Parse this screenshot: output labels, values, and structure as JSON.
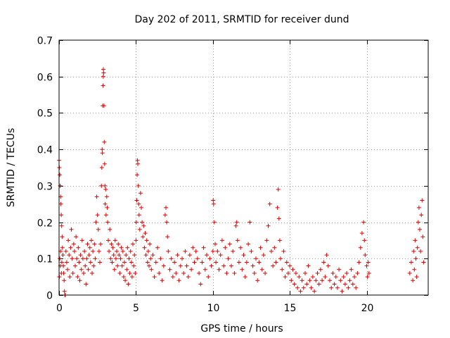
{
  "chart_data": {
    "type": "scatter",
    "title": "Day 202 of 2011, SRMTID for receiver dund",
    "xlabel": "GPS time / hours",
    "ylabel": "SRMTID / TECUs",
    "xlim": [
      0,
      24
    ],
    "ylim": [
      0,
      0.7
    ],
    "xticks": [
      0,
      5,
      10,
      15,
      20
    ],
    "xtick_labels": [
      "0",
      "5",
      "10",
      "15",
      "20"
    ],
    "yticks": [
      0,
      0.1,
      0.2,
      0.3,
      0.4,
      0.5,
      0.6,
      0.7
    ],
    "ytick_labels": [
      "0",
      "0.1",
      "0.2",
      "0.3",
      "0.4",
      "0.5",
      "0.6",
      "0.7"
    ],
    "grid": true,
    "marker": "+",
    "series": [
      {
        "name": "SRMTID",
        "color": "#e00000",
        "points": [
          [
            0.0,
            0.37
          ],
          [
            0.02,
            0.35
          ],
          [
            0.05,
            0.33
          ],
          [
            0.07,
            0.3
          ],
          [
            0.1,
            0.27
          ],
          [
            0.12,
            0.25
          ],
          [
            0.14,
            0.22
          ],
          [
            0.17,
            0.19
          ],
          [
            0.2,
            0.16
          ],
          [
            0.22,
            0.13
          ],
          [
            0.25,
            0.11
          ],
          [
            0.28,
            0.08
          ],
          [
            0.3,
            0.06
          ],
          [
            0.33,
            0.04
          ],
          [
            0.35,
            0.01
          ],
          [
            0.38,
            0.0
          ],
          [
            0.4,
            0.0
          ],
          [
            0.05,
            0.1
          ],
          [
            0.08,
            0.08
          ],
          [
            0.15,
            0.06
          ],
          [
            0.18,
            0.09
          ],
          [
            0.1,
            0.12
          ],
          [
            0.02,
            0.05
          ],
          [
            0.45,
            0.12
          ],
          [
            0.5,
            0.09
          ],
          [
            0.55,
            0.07
          ],
          [
            0.6,
            0.15
          ],
          [
            0.65,
            0.11
          ],
          [
            0.7,
            0.05
          ],
          [
            0.75,
            0.13
          ],
          [
            0.8,
            0.18
          ],
          [
            0.85,
            0.1
          ],
          [
            0.9,
            0.06
          ],
          [
            0.95,
            0.14
          ],
          [
            1.0,
            0.12
          ],
          [
            1.05,
            0.08
          ],
          [
            1.1,
            0.16
          ],
          [
            1.15,
            0.1
          ],
          [
            1.2,
            0.05
          ],
          [
            1.25,
            0.13
          ],
          [
            1.3,
            0.09
          ],
          [
            1.35,
            0.04
          ],
          [
            1.4,
            0.11
          ],
          [
            1.45,
            0.07
          ],
          [
            1.5,
            0.15
          ],
          [
            1.55,
            0.1
          ],
          [
            1.6,
            0.06
          ],
          [
            1.65,
            0.12
          ],
          [
            1.7,
            0.08
          ],
          [
            1.75,
            0.03
          ],
          [
            1.8,
            0.1
          ],
          [
            1.85,
            0.14
          ],
          [
            1.9,
            0.07
          ],
          [
            1.95,
            0.11
          ],
          [
            2.0,
            0.13
          ],
          [
            2.05,
            0.09
          ],
          [
            2.1,
            0.15
          ],
          [
            2.15,
            0.06
          ],
          [
            2.2,
            0.12
          ],
          [
            2.25,
            0.08
          ],
          [
            2.3,
            0.14
          ],
          [
            2.35,
            0.1
          ],
          [
            2.4,
            0.2
          ],
          [
            2.45,
            0.27
          ],
          [
            2.5,
            0.22
          ],
          [
            2.55,
            0.18
          ],
          [
            2.6,
            0.12
          ],
          [
            2.65,
            0.09
          ],
          [
            2.7,
            0.14
          ],
          [
            2.75,
            0.3
          ],
          [
            2.78,
            0.35
          ],
          [
            2.8,
            0.4
          ],
          [
            2.82,
            0.39
          ],
          [
            2.84,
            0.52
          ],
          [
            2.86,
            0.575
          ],
          [
            2.87,
            0.6
          ],
          [
            2.88,
            0.62
          ],
          [
            2.9,
            0.61
          ],
          [
            2.92,
            0.52
          ],
          [
            2.94,
            0.42
          ],
          [
            2.96,
            0.36
          ],
          [
            2.98,
            0.3
          ],
          [
            3.0,
            0.25
          ],
          [
            3.03,
            0.29
          ],
          [
            3.06,
            0.22
          ],
          [
            3.1,
            0.27
          ],
          [
            3.13,
            0.24
          ],
          [
            3.16,
            0.2
          ],
          [
            3.2,
            0.15
          ],
          [
            3.25,
            0.12
          ],
          [
            3.3,
            0.18
          ],
          [
            3.35,
            0.1
          ],
          [
            3.4,
            0.14
          ],
          [
            3.45,
            0.09
          ],
          [
            3.5,
            0.13
          ],
          [
            3.55,
            0.11
          ],
          [
            3.6,
            0.07
          ],
          [
            3.65,
            0.15
          ],
          [
            3.7,
            0.1
          ],
          [
            3.75,
            0.12
          ],
          [
            3.8,
            0.08
          ],
          [
            3.85,
            0.14
          ],
          [
            3.9,
            0.11
          ],
          [
            3.95,
            0.06
          ],
          [
            4.0,
            0.1
          ],
          [
            4.05,
            0.13
          ],
          [
            4.1,
            0.08
          ],
          [
            4.15,
            0.12
          ],
          [
            4.2,
            0.05
          ],
          [
            4.25,
            0.09
          ],
          [
            4.3,
            0.04
          ],
          [
            4.35,
            0.11
          ],
          [
            4.4,
            0.07
          ],
          [
            4.45,
            0.13
          ],
          [
            4.5,
            0.03
          ],
          [
            4.55,
            0.1
          ],
          [
            4.6,
            0.06
          ],
          [
            4.65,
            0.12
          ],
          [
            4.7,
            0.09
          ],
          [
            4.75,
            0.05
          ],
          [
            4.8,
            0.14
          ],
          [
            4.85,
            0.08
          ],
          [
            4.9,
            0.11
          ],
          [
            4.95,
            0.06
          ],
          [
            5.0,
            0.15
          ],
          [
            5.02,
            0.2
          ],
          [
            5.05,
            0.26
          ],
          [
            5.08,
            0.33
          ],
          [
            5.1,
            0.37
          ],
          [
            5.12,
            0.36
          ],
          [
            5.15,
            0.3
          ],
          [
            5.18,
            0.25
          ],
          [
            5.2,
            0.22
          ],
          [
            5.25,
            0.18
          ],
          [
            5.3,
            0.28
          ],
          [
            5.35,
            0.24
          ],
          [
            5.4,
            0.2
          ],
          [
            5.45,
            0.16
          ],
          [
            5.5,
            0.19
          ],
          [
            5.55,
            0.13
          ],
          [
            5.6,
            0.17
          ],
          [
            5.65,
            0.11
          ],
          [
            5.7,
            0.15
          ],
          [
            5.75,
            0.09
          ],
          [
            5.8,
            0.12
          ],
          [
            5.85,
            0.08
          ],
          [
            5.9,
            0.14
          ],
          [
            5.95,
            0.1
          ],
          [
            6.0,
            0.07
          ],
          [
            6.1,
            0.11
          ],
          [
            6.2,
            0.05
          ],
          [
            6.3,
            0.09
          ],
          [
            6.4,
            0.13
          ],
          [
            6.5,
            0.06
          ],
          [
            6.6,
            0.1
          ],
          [
            6.7,
            0.04
          ],
          [
            6.8,
            0.08
          ],
          [
            6.9,
            0.22
          ],
          [
            6.95,
            0.24
          ],
          [
            7.0,
            0.2
          ],
          [
            7.05,
            0.16
          ],
          [
            7.1,
            0.12
          ],
          [
            7.2,
            0.07
          ],
          [
            7.3,
            0.1
          ],
          [
            7.4,
            0.05
          ],
          [
            7.5,
            0.09
          ],
          [
            7.6,
            0.06
          ],
          [
            7.7,
            0.11
          ],
          [
            7.8,
            0.04
          ],
          [
            7.9,
            0.08
          ],
          [
            8.0,
            0.1
          ],
          [
            8.1,
            0.06
          ],
          [
            8.2,
            0.12
          ],
          [
            8.3,
            0.08
          ],
          [
            8.4,
            0.05
          ],
          [
            8.5,
            0.11
          ],
          [
            8.6,
            0.07
          ],
          [
            8.7,
            0.13
          ],
          [
            8.8,
            0.09
          ],
          [
            8.9,
            0.12
          ],
          [
            9.0,
            0.1
          ],
          [
            9.1,
            0.06
          ],
          [
            9.2,
            0.03
          ],
          [
            9.3,
            0.09
          ],
          [
            9.4,
            0.13
          ],
          [
            9.5,
            0.07
          ],
          [
            9.6,
            0.11
          ],
          [
            9.7,
            0.05
          ],
          [
            9.8,
            0.1
          ],
          [
            9.9,
            0.08
          ],
          [
            10.0,
            0.12
          ],
          [
            10.02,
            0.26
          ],
          [
            10.05,
            0.25
          ],
          [
            10.1,
            0.2
          ],
          [
            10.15,
            0.14
          ],
          [
            10.2,
            0.09
          ],
          [
            10.3,
            0.12
          ],
          [
            10.4,
            0.07
          ],
          [
            10.5,
            0.11
          ],
          [
            10.6,
            0.15
          ],
          [
            10.7,
            0.08
          ],
          [
            10.8,
            0.13
          ],
          [
            10.9,
            0.06
          ],
          [
            11.0,
            0.1
          ],
          [
            11.1,
            0.14
          ],
          [
            11.2,
            0.08
          ],
          [
            11.3,
            0.12
          ],
          [
            11.4,
            0.06
          ],
          [
            11.5,
            0.19
          ],
          [
            11.55,
            0.2
          ],
          [
            11.6,
            0.15
          ],
          [
            11.7,
            0.09
          ],
          [
            11.8,
            0.13
          ],
          [
            11.9,
            0.07
          ],
          [
            12.0,
            0.11
          ],
          [
            12.1,
            0.05
          ],
          [
            12.2,
            0.09
          ],
          [
            12.3,
            0.14
          ],
          [
            12.4,
            0.2
          ],
          [
            12.5,
            0.12
          ],
          [
            12.6,
            0.08
          ],
          [
            12.7,
            0.06
          ],
          [
            12.8,
            0.1
          ],
          [
            12.9,
            0.04
          ],
          [
            13.0,
            0.09
          ],
          [
            13.1,
            0.13
          ],
          [
            13.2,
            0.07
          ],
          [
            13.3,
            0.11
          ],
          [
            13.4,
            0.06
          ],
          [
            13.5,
            0.15
          ],
          [
            13.6,
            0.19
          ],
          [
            13.7,
            0.25
          ],
          [
            13.8,
            0.12
          ],
          [
            13.9,
            0.08
          ],
          [
            14.0,
            0.13
          ],
          [
            14.1,
            0.09
          ],
          [
            14.2,
            0.24
          ],
          [
            14.25,
            0.29
          ],
          [
            14.3,
            0.21
          ],
          [
            14.35,
            0.15
          ],
          [
            14.4,
            0.1
          ],
          [
            14.5,
            0.07
          ],
          [
            14.6,
            0.12
          ],
          [
            14.7,
            0.05
          ],
          [
            14.8,
            0.09
          ],
          [
            14.9,
            0.06
          ],
          [
            15.0,
            0.08
          ],
          [
            15.1,
            0.04
          ],
          [
            15.2,
            0.07
          ],
          [
            15.3,
            0.03
          ],
          [
            15.4,
            0.06
          ],
          [
            15.5,
            0.02
          ],
          [
            15.6,
            0.05
          ],
          [
            15.7,
            0.01
          ],
          [
            15.8,
            0.04
          ],
          [
            15.9,
            0.02
          ],
          [
            16.0,
            0.06
          ],
          [
            16.1,
            0.03
          ],
          [
            16.2,
            0.08
          ],
          [
            16.3,
            0.04
          ],
          [
            16.4,
            0.02
          ],
          [
            16.5,
            0.05
          ],
          [
            16.6,
            0.01
          ],
          [
            16.7,
            0.04
          ],
          [
            16.8,
            0.06
          ],
          [
            16.9,
            0.03
          ],
          [
            17.0,
            0.07
          ],
          [
            17.1,
            0.04
          ],
          [
            17.2,
            0.09
          ],
          [
            17.3,
            0.05
          ],
          [
            17.4,
            0.11
          ],
          [
            17.5,
            0.08
          ],
          [
            17.6,
            0.04
          ],
          [
            17.7,
            0.02
          ],
          [
            17.8,
            0.06
          ],
          [
            17.9,
            0.03
          ],
          [
            18.0,
            0.05
          ],
          [
            18.1,
            0.02
          ],
          [
            18.2,
            0.07
          ],
          [
            18.3,
            0.04
          ],
          [
            18.4,
            0.01
          ],
          [
            18.5,
            0.05
          ],
          [
            18.6,
            0.03
          ],
          [
            18.7,
            0.06
          ],
          [
            18.8,
            0.02
          ],
          [
            18.9,
            0.04
          ],
          [
            19.0,
            0.07
          ],
          [
            19.1,
            0.03
          ],
          [
            19.2,
            0.05
          ],
          [
            19.3,
            0.02
          ],
          [
            19.4,
            0.06
          ],
          [
            19.5,
            0.09
          ],
          [
            19.6,
            0.13
          ],
          [
            19.7,
            0.17
          ],
          [
            19.8,
            0.2
          ],
          [
            19.85,
            0.15
          ],
          [
            19.9,
            0.11
          ],
          [
            20.0,
            0.08
          ],
          [
            20.05,
            0.05
          ],
          [
            20.1,
            0.09
          ],
          [
            20.15,
            0.06
          ],
          [
            22.8,
            0.06
          ],
          [
            22.9,
            0.09
          ],
          [
            23.0,
            0.04
          ],
          [
            23.05,
            0.12
          ],
          [
            23.1,
            0.07
          ],
          [
            23.15,
            0.15
          ],
          [
            23.2,
            0.1
          ],
          [
            23.25,
            0.05
          ],
          [
            23.3,
            0.13
          ],
          [
            23.35,
            0.2
          ],
          [
            23.4,
            0.24
          ],
          [
            23.45,
            0.18
          ],
          [
            23.5,
            0.12
          ],
          [
            23.55,
            0.22
          ],
          [
            23.6,
            0.26
          ],
          [
            23.65,
            0.16
          ],
          [
            23.7,
            0.09
          ]
        ]
      }
    ]
  }
}
